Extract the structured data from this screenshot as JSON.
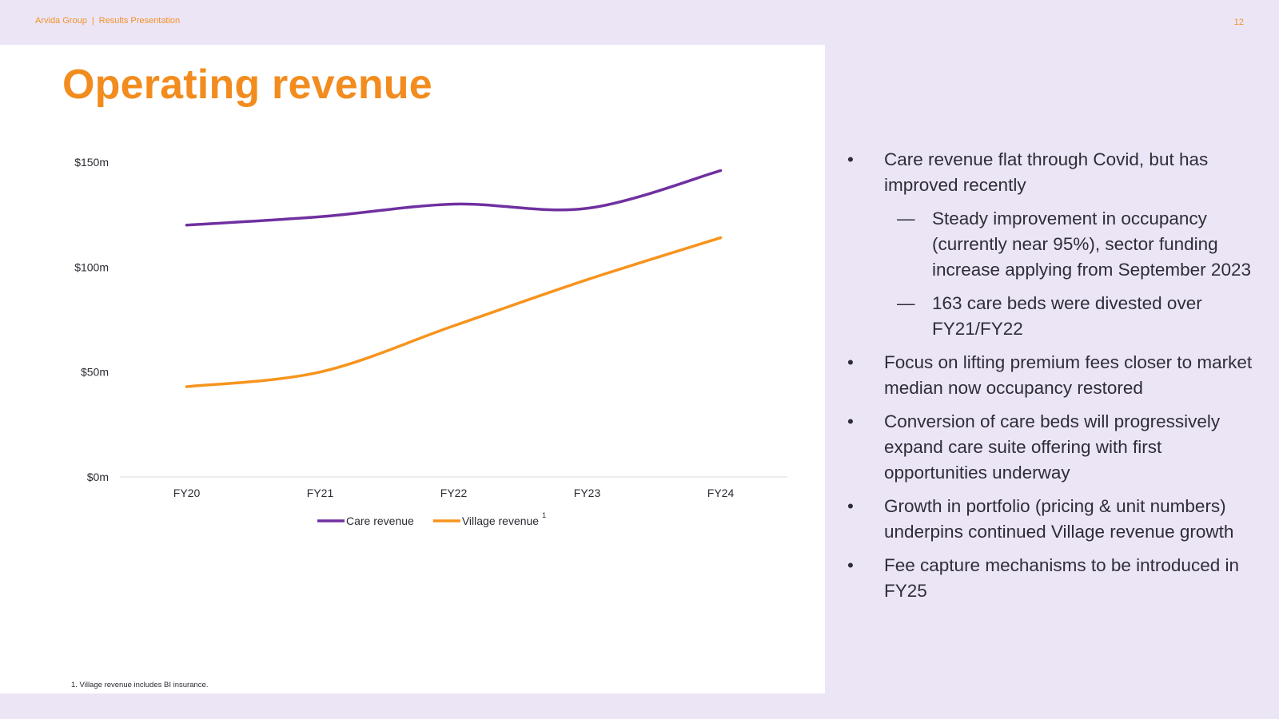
{
  "header": {
    "company": "Arvida Group",
    "separator": "|",
    "presentation": "Results Presentation",
    "page_number": "12"
  },
  "title": "Operating revenue",
  "chart_data": {
    "type": "line",
    "categories": [
      "FY20",
      "FY21",
      "FY22",
      "FY23",
      "FY24"
    ],
    "series": [
      {
        "name": "Care revenue",
        "color": "#7030A0",
        "values": [
          120,
          124,
          130,
          128,
          146
        ]
      },
      {
        "name": "Village revenue",
        "superscript": "1",
        "color": "#F7941D",
        "values": [
          43,
          50,
          72,
          94,
          114
        ]
      }
    ],
    "y_ticks": [
      {
        "value": 0,
        "label": "$0m"
      },
      {
        "value": 50,
        "label": "$50m"
      },
      {
        "value": 100,
        "label": "$100m"
      },
      {
        "value": 150,
        "label": "$150m"
      }
    ],
    "ylim": [
      0,
      150
    ],
    "legend_position": "bottom-center"
  },
  "footnote": "1. Village revenue includes BI insurance.",
  "bullets": [
    {
      "text": "Care revenue flat through Covid, but has improved recently",
      "subs": [
        "Steady improvement in occupancy (currently near 95%), sector funding increase applying from September 2023",
        "163 care beds were divested over FY21/FY22"
      ]
    },
    {
      "text": "Focus on lifting premium fees closer to market median now occupancy restored",
      "subs": []
    },
    {
      "text": "Conversion of care beds will progressively expand care suite offering with first opportunities underway",
      "subs": []
    },
    {
      "text": "Growth in portfolio (pricing & unit numbers) underpins continued Village revenue growth",
      "subs": []
    },
    {
      "text": "Fee capture mechanisms to be introduced in FY25",
      "subs": []
    }
  ],
  "markers": {
    "bullet": "•",
    "dash": "—"
  },
  "colors": {
    "accent": "#F28C1E",
    "background": "#ECE5F6",
    "care": "#7030A0",
    "village": "#F7941D"
  }
}
